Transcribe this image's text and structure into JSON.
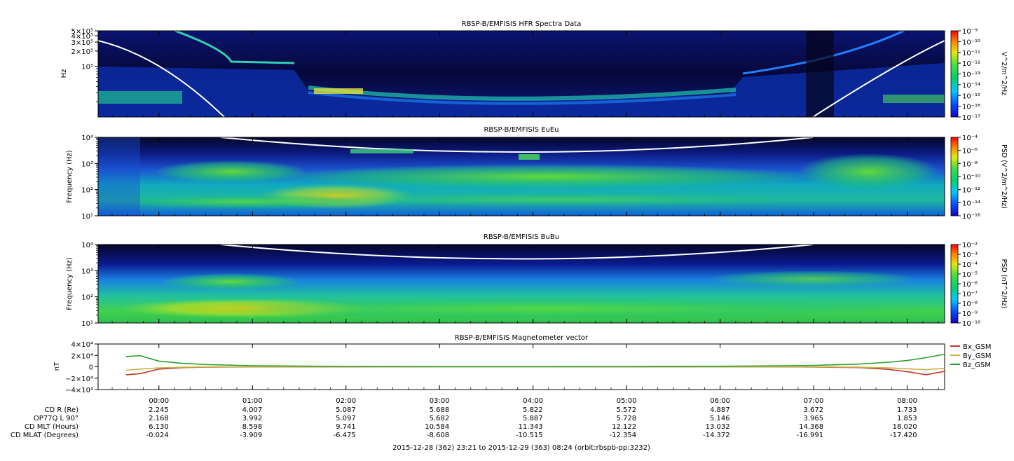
{
  "chart_data": [
    {
      "type": "heatmap",
      "title": "RBSP-B/EMFISIS  HFR Spectra Data",
      "ylabel": "Hz",
      "ytick_labels": [
        "5×10⁵",
        "4×10⁵",
        "3×10⁵",
        "2×10⁵",
        "10⁵"
      ],
      "ytick_values": [
        500000,
        400000,
        300000,
        200000,
        100000
      ],
      "ylim": [
        10000,
        500000
      ],
      "log_scale_y": true,
      "colorbar": {
        "label": "V^2/m^2/Hz",
        "tick_labels": [
          "10⁻⁹",
          "10⁻¹⁰",
          "10⁻¹¹",
          "10⁻¹²",
          "10⁻¹³",
          "10⁻¹⁴",
          "10⁻¹⁵",
          "10⁻¹⁶",
          "10⁻¹⁷"
        ],
        "range": [
          1e-17,
          1e-09
        ]
      }
    },
    {
      "type": "heatmap",
      "title": "RBSP-B/EMFISIS  EuEu",
      "ylabel": "Frequency (Hz)",
      "ytick_labels": [
        "10⁴",
        "10³",
        "10²",
        "10¹"
      ],
      "ytick_values": [
        10000,
        1000,
        100,
        10
      ],
      "ylim": [
        10,
        10000
      ],
      "log_scale_y": true,
      "colorbar": {
        "label": "PSD (V^2/m^2/Hz)",
        "tick_labels": [
          "10⁻⁴",
          "10⁻⁶",
          "10⁻⁸",
          "10⁻¹⁰",
          "10⁻¹²",
          "10⁻¹⁴",
          "10⁻¹⁶"
        ],
        "range": [
          1e-16,
          0.0001
        ]
      }
    },
    {
      "type": "heatmap",
      "title": "RBSP-B/EMFISIS  BuBu",
      "ylabel": "Frequency (Hz)",
      "ytick_labels": [
        "10⁴",
        "10³",
        "10²",
        "10¹"
      ],
      "ytick_values": [
        10000,
        1000,
        100,
        10
      ],
      "ylim": [
        10,
        10000
      ],
      "log_scale_y": true,
      "colorbar": {
        "label": "PSD (nT^2/Hz)",
        "tick_labels": [
          "10⁻²",
          "10⁻³",
          "10⁻⁴",
          "10⁻⁵",
          "10⁻⁶",
          "10⁻⁷",
          "10⁻⁸",
          "10⁻⁹",
          "10⁻¹⁰"
        ],
        "range": [
          1e-10,
          0.01
        ]
      }
    },
    {
      "type": "line",
      "title": "RBSP-B/EMFISIS  Magnetometer vector",
      "ylabel": "nT",
      "ytick_labels": [
        "4×10⁴",
        "2×10⁴",
        "0",
        "−2×10⁴",
        "−4×10⁴"
      ],
      "ylim": [
        -40000,
        40000
      ],
      "x_hours": [
        -0.35,
        -0.2,
        0,
        0.25,
        0.5,
        1,
        2,
        3,
        4,
        5,
        6,
        7,
        7.5,
        7.8,
        8,
        8.2,
        8.4
      ],
      "series": [
        {
          "name": "Bx_GSM",
          "color": "#c0392b",
          "values": [
            -14000,
            -12000,
            -4000,
            -1500,
            -800,
            -300,
            -100,
            -50,
            -50,
            -80,
            -150,
            -500,
            -1500,
            -4500,
            -8500,
            -14000,
            -8000
          ]
        },
        {
          "name": "By_GSM",
          "color": "#c8b44a",
          "values": [
            -6000,
            -4000,
            -2000,
            -800,
            -400,
            -150,
            -50,
            -20,
            -20,
            -30,
            -80,
            -300,
            -800,
            -2000,
            -3500,
            -5000,
            -3000
          ]
        },
        {
          "name": "Bz_GSM",
          "color": "#2ca02c",
          "values": [
            18000,
            19500,
            10000,
            6000,
            4000,
            1800,
            600,
            250,
            200,
            350,
            900,
            2300,
            4800,
            8000,
            11000,
            16000,
            22000
          ]
        }
      ]
    }
  ],
  "time_axis": {
    "ticks": [
      "00:00",
      "01:00",
      "02:00",
      "03:00",
      "04:00",
      "05:00",
      "06:00",
      "07:00",
      "08:00"
    ],
    "tick_hours": [
      0,
      1,
      2,
      3,
      4,
      5,
      6,
      7,
      8
    ],
    "range_hours": [
      -0.65,
      8.4
    ]
  },
  "ephemeris": {
    "rows": [
      {
        "label": "CD R (Re)",
        "values": [
          "2.245",
          "4.007",
          "5.087",
          "5.688",
          "5.822",
          "5.572",
          "4.887",
          "3.672",
          "1.733"
        ]
      },
      {
        "label": "OP77Q L 90°",
        "values": [
          "2.168",
          "3.992",
          "5.097",
          "5.682",
          "5.887",
          "5.728",
          "5.146",
          "3.965",
          "1.853"
        ]
      },
      {
        "label": "CD MLT (Hours)",
        "values": [
          "6.130",
          "8.598",
          "9.741",
          "10.584",
          "11.343",
          "12.122",
          "13.032",
          "14.368",
          "18.020"
        ]
      },
      {
        "label": "CD MLAT (Degrees)",
        "values": [
          "-0.024",
          "-3.909",
          "-6.475",
          "-8.608",
          "-10.515",
          "-12.354",
          "-14.372",
          "-16.991",
          "-17.420"
        ]
      }
    ]
  },
  "footer": "2015-12-28 (362) 23:21 to 2015-12-29 (363) 08:24 (orbit:rbspb-pp:3232)",
  "colors": {
    "background_dark": "#06061e",
    "spectrogram_mid": "#22c26a",
    "gyro_line": "#ffffff"
  }
}
